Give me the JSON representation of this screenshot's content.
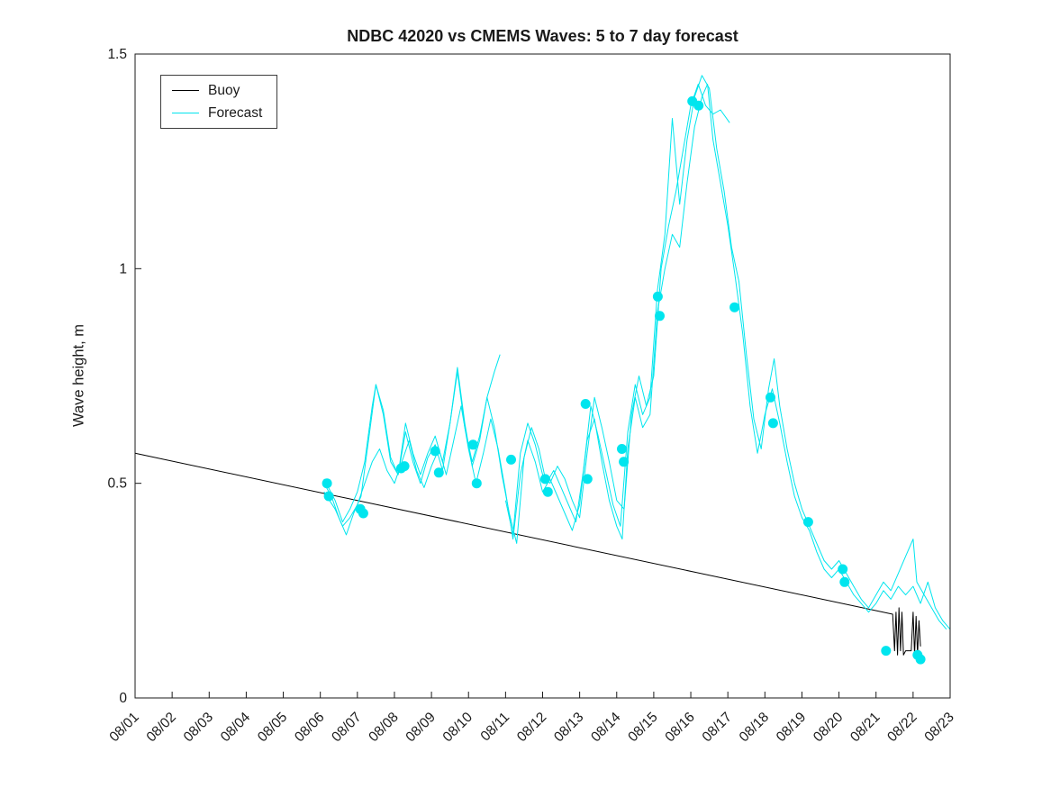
{
  "figure": {
    "background": "#ffffff"
  },
  "chart_data": {
    "type": "line",
    "title": "NDBC 42020 vs CMEMS Waves: 5 to 7 day forecast",
    "xlabel": "",
    "ylabel": "Wave height, m",
    "xlim": [
      1,
      23
    ],
    "ylim": [
      0,
      1.5
    ],
    "grid": false,
    "axis_color": "#1a1a1a",
    "x_tick_values": [
      1,
      2,
      3,
      4,
      5,
      6,
      7,
      8,
      9,
      10,
      11,
      12,
      13,
      14,
      15,
      16,
      17,
      18,
      19,
      20,
      21,
      22,
      23
    ],
    "x_tick_labels": [
      "08/01",
      "08/02",
      "08/03",
      "08/04",
      "08/05",
      "08/06",
      "08/07",
      "08/08",
      "08/09",
      "08/10",
      "08/11",
      "08/12",
      "08/13",
      "08/14",
      "08/15",
      "08/16",
      "08/17",
      "08/18",
      "08/19",
      "08/20",
      "08/21",
      "08/22",
      "08/23"
    ],
    "y_tick_values": [
      0,
      0.5,
      1,
      1.5
    ],
    "y_tick_labels": [
      "0",
      "0.5",
      "1",
      "1.5"
    ],
    "legend": {
      "position": "northwest",
      "entries": [
        {
          "label": "Buoy",
          "color": "#000000"
        },
        {
          "label": "Forecast",
          "color": "#00e5ee"
        }
      ]
    },
    "series": [
      {
        "name": "buoy",
        "type": "line",
        "color": "#000000",
        "width": 1,
        "x": [
          1.0,
          21.45,
          21.5,
          21.54,
          21.58,
          21.62,
          21.66,
          21.7,
          21.74,
          21.8,
          21.95,
          22.0,
          22.04,
          22.08,
          22.12,
          22.16,
          22.2
        ],
        "y": [
          0.57,
          0.195,
          0.11,
          0.2,
          0.1,
          0.21,
          0.11,
          0.2,
          0.1,
          0.11,
          0.11,
          0.2,
          0.1,
          0.19,
          0.1,
          0.18,
          0.12
        ]
      },
      {
        "name": "forecast-run-1",
        "type": "line",
        "color": "#00e5ee",
        "width": 1,
        "x": [
          6.1,
          6.3,
          6.5,
          6.7,
          6.9,
          7.1,
          7.3,
          7.5,
          7.7,
          7.9,
          8.1,
          8.3,
          8.5,
          8.7,
          8.9,
          9.1,
          9.3,
          9.5,
          9.7,
          9.9,
          10.1,
          10.3,
          10.5,
          10.7,
          10.85
        ],
        "y": [
          0.5,
          0.47,
          0.42,
          0.38,
          0.43,
          0.47,
          0.6,
          0.73,
          0.67,
          0.56,
          0.52,
          0.62,
          0.55,
          0.5,
          0.56,
          0.59,
          0.53,
          0.64,
          0.76,
          0.63,
          0.55,
          0.61,
          0.7,
          0.76,
          0.8
        ]
      },
      {
        "name": "forecast-run-2",
        "type": "line",
        "color": "#00e5ee",
        "width": 1,
        "x": [
          6.1,
          6.4,
          6.6,
          6.8,
          7.0,
          7.2,
          7.4,
          7.6,
          7.8,
          8.0,
          8.2,
          8.4,
          8.6,
          8.8,
          9.0,
          9.2,
          9.4,
          9.6,
          9.8,
          10.0,
          10.2,
          10.4,
          10.6,
          10.8,
          11.0,
          11.2,
          11.4,
          11.6,
          11.8,
          12.0,
          12.2,
          12.4,
          12.6,
          12.8,
          13.0,
          13.2,
          13.4,
          13.6,
          13.8,
          14.0,
          14.15,
          14.3,
          14.5,
          14.7,
          14.9,
          15.1,
          15.3,
          15.5,
          15.7,
          15.9,
          16.1,
          16.3,
          16.45,
          16.6,
          16.8,
          17.0,
          17.2,
          17.4,
          17.6,
          17.8,
          18.0,
          18.2,
          18.4,
          18.6,
          18.8,
          19.0,
          19.2,
          19.4,
          19.6,
          19.8,
          20.0,
          20.2,
          20.4,
          20.6,
          20.8,
          21.0,
          21.2,
          21.4,
          21.6,
          21.8,
          22.0,
          22.2,
          22.4,
          22.6,
          22.8,
          23.0
        ],
        "y": [
          0.48,
          0.44,
          0.4,
          0.42,
          0.45,
          0.5,
          0.55,
          0.58,
          0.53,
          0.5,
          0.55,
          0.6,
          0.53,
          0.49,
          0.54,
          0.58,
          0.52,
          0.6,
          0.68,
          0.58,
          0.5,
          0.57,
          0.65,
          0.58,
          0.48,
          0.37,
          0.52,
          0.6,
          0.55,
          0.48,
          0.51,
          0.47,
          0.43,
          0.39,
          0.45,
          0.6,
          0.65,
          0.55,
          0.46,
          0.4,
          0.37,
          0.58,
          0.7,
          0.63,
          0.66,
          0.9,
          1.0,
          1.08,
          1.05,
          1.2,
          1.33,
          1.4,
          1.43,
          1.3,
          1.2,
          1.1,
          0.98,
          0.85,
          0.68,
          0.57,
          0.66,
          0.72,
          0.64,
          0.55,
          0.47,
          0.42,
          0.39,
          0.34,
          0.3,
          0.28,
          0.3,
          0.27,
          0.24,
          0.22,
          0.2,
          0.22,
          0.25,
          0.23,
          0.26,
          0.24,
          0.26,
          0.22,
          0.27,
          0.21,
          0.18,
          0.16
        ]
      },
      {
        "name": "forecast-run-3",
        "type": "line",
        "color": "#00e5ee",
        "width": 1,
        "x": [
          6.1,
          6.4,
          6.6,
          6.8,
          7.0,
          7.2,
          7.4,
          7.5,
          7.7,
          7.9,
          8.1,
          8.3,
          8.5,
          8.7,
          8.9,
          9.1,
          9.3,
          9.5,
          9.7,
          9.9,
          10.1,
          10.3,
          10.5,
          10.7,
          10.9,
          11.1,
          11.3,
          11.5,
          11.7,
          11.9,
          12.1,
          12.3,
          12.5,
          12.7,
          12.9,
          13.1,
          13.3,
          13.5,
          13.7,
          13.9,
          14.1,
          14.3,
          14.5,
          14.7,
          14.9,
          15.1,
          15.3,
          15.5,
          15.7,
          15.9,
          16.1,
          16.3,
          16.5,
          16.7,
          16.9,
          17.1,
          17.3,
          17.5,
          17.7,
          17.9,
          18.1,
          18.25,
          18.4,
          18.6,
          18.8,
          19.0,
          19.2,
          19.4,
          19.6,
          19.8,
          20.0,
          20.2,
          20.4,
          20.6,
          20.8,
          21.0,
          21.2,
          21.4,
          21.6,
          21.8,
          22.0,
          22.1,
          22.3,
          22.5,
          22.7,
          22.9
        ],
        "y": [
          0.51,
          0.46,
          0.41,
          0.44,
          0.48,
          0.55,
          0.68,
          0.73,
          0.66,
          0.55,
          0.52,
          0.64,
          0.57,
          0.52,
          0.57,
          0.61,
          0.55,
          0.64,
          0.77,
          0.64,
          0.54,
          0.6,
          0.7,
          0.63,
          0.52,
          0.43,
          0.36,
          0.56,
          0.63,
          0.58,
          0.5,
          0.53,
          0.49,
          0.45,
          0.41,
          0.53,
          0.68,
          0.61,
          0.53,
          0.45,
          0.4,
          0.62,
          0.73,
          0.66,
          0.7,
          0.95,
          1.08,
          1.35,
          1.15,
          1.3,
          1.4,
          1.45,
          1.42,
          1.28,
          1.18,
          1.05,
          0.97,
          0.8,
          0.65,
          0.58,
          0.72,
          0.79,
          0.68,
          0.58,
          0.5,
          0.44,
          0.4,
          0.36,
          0.32,
          0.3,
          0.32,
          0.29,
          0.26,
          0.23,
          0.21,
          0.24,
          0.27,
          0.25,
          0.29,
          0.33,
          0.37,
          0.27,
          0.24,
          0.21,
          0.18,
          0.16
        ]
      },
      {
        "name": "forecast-run-4",
        "type": "line",
        "color": "#00e5ee",
        "width": 1,
        "x": [
          11.0,
          11.2,
          11.4,
          11.6,
          11.8,
          12.0,
          12.2,
          12.4,
          12.6,
          12.8,
          13.0,
          13.2,
          13.4,
          13.6,
          13.8,
          14.0,
          14.2,
          14.4,
          14.6,
          14.8,
          15.0,
          15.2,
          15.4,
          15.6,
          15.8,
          16.0,
          16.2,
          16.4,
          16.6,
          16.8,
          17.05
        ],
        "y": [
          0.46,
          0.38,
          0.57,
          0.64,
          0.59,
          0.52,
          0.5,
          0.54,
          0.51,
          0.46,
          0.42,
          0.57,
          0.7,
          0.63,
          0.55,
          0.46,
          0.44,
          0.66,
          0.75,
          0.68,
          0.75,
          1.0,
          1.1,
          1.18,
          1.28,
          1.38,
          1.43,
          1.38,
          1.36,
          1.37,
          1.34
        ]
      },
      {
        "name": "forecast-markers",
        "type": "scatter",
        "color": "#00e5ee",
        "marker_radius": 5.5,
        "x": [
          6.18,
          6.23,
          7.08,
          7.16,
          8.18,
          8.27,
          9.1,
          9.2,
          10.12,
          10.22,
          11.15,
          12.07,
          12.14,
          13.16,
          13.21,
          14.14,
          14.19,
          15.11,
          15.16,
          16.04,
          16.21,
          17.18,
          18.15,
          18.22,
          19.17,
          20.1,
          20.15,
          21.27,
          22.12,
          22.2
        ],
        "y": [
          0.5,
          0.47,
          0.44,
          0.43,
          0.535,
          0.54,
          0.575,
          0.525,
          0.59,
          0.5,
          0.555,
          0.51,
          0.48,
          0.685,
          0.51,
          0.58,
          0.55,
          0.935,
          0.89,
          1.39,
          1.38,
          0.91,
          0.7,
          0.64,
          0.41,
          0.3,
          0.27,
          0.11,
          0.1,
          0.09
        ]
      }
    ]
  }
}
